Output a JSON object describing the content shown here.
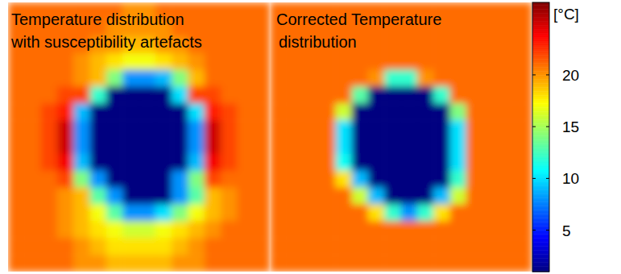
{
  "chart_data": [
    {
      "type": "heatmap",
      "title": [
        "Temperature distribution",
        "with susceptibility artefacts"
      ],
      "tick_labels": false,
      "cells": [
        [
          21,
          21,
          21,
          21,
          21,
          21,
          21,
          20,
          20,
          21,
          21,
          21,
          21,
          21,
          21,
          21
        ],
        [
          21,
          21,
          21,
          21,
          21,
          21,
          20,
          20,
          20,
          20,
          21,
          21,
          21,
          21,
          21,
          21
        ],
        [
          21,
          21,
          21,
          21,
          21,
          20,
          20,
          19,
          19,
          20,
          20,
          21,
          21,
          21,
          21,
          21
        ],
        [
          21,
          21,
          21,
          21,
          20,
          19,
          18,
          17,
          17,
          18,
          19,
          20,
          21,
          21,
          21,
          21
        ],
        [
          21,
          21,
          21,
          21,
          20,
          19,
          14,
          8,
          8,
          9,
          14,
          19,
          21,
          21,
          21,
          21
        ],
        [
          21,
          21,
          21,
          22,
          22,
          12,
          1,
          1,
          1,
          1,
          10,
          22,
          22,
          21,
          21,
          21
        ],
        [
          21,
          21,
          22,
          23,
          9,
          1,
          1,
          1,
          1,
          1,
          1,
          10,
          23,
          22,
          21,
          21
        ],
        [
          21,
          21,
          22,
          25,
          8,
          1,
          1,
          1,
          1,
          1,
          1,
          8,
          25,
          22,
          21,
          21
        ],
        [
          21,
          21,
          22,
          25,
          8,
          1,
          1,
          1,
          1,
          1,
          1,
          8,
          25,
          22,
          21,
          21
        ],
        [
          21,
          21,
          22,
          24,
          9,
          1,
          1,
          1,
          1,
          1,
          1,
          9,
          24,
          22,
          21,
          21
        ],
        [
          21,
          21,
          21,
          22,
          14,
          8,
          1,
          1,
          1,
          1,
          8,
          14,
          22,
          21,
          21,
          21
        ],
        [
          21,
          21,
          21,
          20,
          19,
          13,
          8,
          1,
          1,
          1,
          8,
          13,
          19,
          20,
          21,
          21
        ],
        [
          21,
          21,
          21,
          20,
          19,
          17,
          13,
          8,
          8,
          10,
          14,
          17,
          19,
          20,
          21,
          21
        ],
        [
          21,
          21,
          21,
          20,
          19,
          18,
          17,
          16,
          16,
          17,
          18,
          19,
          20,
          21,
          21,
          21
        ],
        [
          21,
          21,
          21,
          21,
          20,
          19,
          18,
          18,
          18,
          18,
          19,
          20,
          21,
          21,
          21,
          21
        ],
        [
          21,
          21,
          21,
          21,
          20,
          20,
          19,
          19,
          19,
          19,
          20,
          20,
          21,
          21,
          21,
          21
        ]
      ]
    },
    {
      "type": "heatmap",
      "title": [
        "Corrected Temperature",
        "distribution"
      ],
      "tick_labels": false,
      "cells": [
        [
          21,
          21,
          21,
          21,
          21,
          21,
          21,
          21,
          21,
          21,
          21,
          21,
          21,
          21,
          21,
          21
        ],
        [
          21,
          21,
          21,
          21,
          21,
          21,
          21,
          21,
          21,
          21,
          21,
          21,
          21,
          21,
          21,
          21
        ],
        [
          21,
          21,
          21,
          21,
          21,
          21,
          21,
          21,
          21,
          21,
          21,
          21,
          21,
          21,
          21,
          21
        ],
        [
          21,
          21,
          21,
          21,
          21,
          21,
          21,
          21,
          21,
          21,
          21,
          21,
          21,
          21,
          21,
          21
        ],
        [
          21,
          21,
          21,
          21,
          21,
          21,
          20,
          12,
          12,
          20,
          21,
          21,
          21,
          21,
          21,
          21
        ],
        [
          21,
          21,
          21,
          21,
          21,
          13,
          1,
          1,
          1,
          1,
          12,
          21,
          21,
          21,
          21,
          21
        ],
        [
          21,
          21,
          21,
          21,
          16,
          1,
          1,
          1,
          1,
          1,
          1,
          14,
          21,
          21,
          21,
          21
        ],
        [
          21,
          21,
          21,
          21,
          10,
          1,
          1,
          1,
          1,
          1,
          1,
          10,
          21,
          21,
          21,
          21
        ],
        [
          21,
          21,
          21,
          21,
          10,
          1,
          1,
          1,
          1,
          1,
          1,
          10,
          21,
          21,
          21,
          21
        ],
        [
          21,
          21,
          21,
          21,
          11,
          1,
          1,
          1,
          1,
          1,
          1,
          10,
          21,
          21,
          21,
          21
        ],
        [
          21,
          21,
          21,
          21,
          18,
          9,
          1,
          1,
          1,
          1,
          1,
          12,
          21,
          21,
          21,
          21
        ],
        [
          21,
          21,
          21,
          21,
          21,
          16,
          9,
          1,
          1,
          1,
          9,
          16,
          21,
          21,
          21,
          21
        ],
        [
          21,
          21,
          21,
          21,
          21,
          21,
          18,
          12,
          8,
          12,
          18,
          21,
          21,
          21,
          21,
          21
        ],
        [
          21,
          21,
          21,
          21,
          21,
          21,
          21,
          21,
          21,
          21,
          21,
          21,
          21,
          21,
          21,
          21
        ],
        [
          21,
          21,
          21,
          21,
          21,
          21,
          21,
          21,
          21,
          21,
          21,
          21,
          21,
          21,
          21,
          21
        ],
        [
          21,
          21,
          21,
          21,
          21,
          21,
          21,
          21,
          21,
          21,
          21,
          21,
          21,
          21,
          21,
          21
        ]
      ],
      "colorbar": {
        "label": "[°C]",
        "range": [
          1,
          27
        ],
        "ticks": [
          5,
          10,
          15,
          20
        ]
      }
    }
  ]
}
